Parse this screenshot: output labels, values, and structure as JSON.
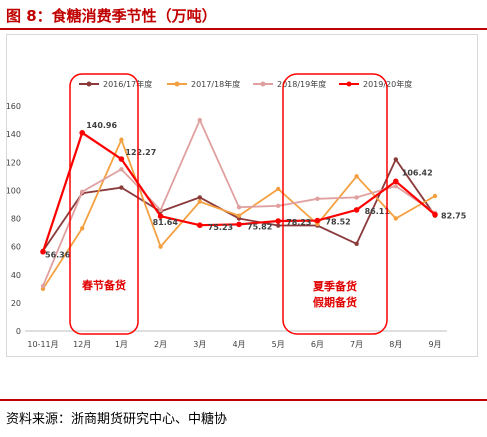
{
  "header": {
    "title": "图 8：食糖消费季节性（万吨）"
  },
  "footer": {
    "source": "资料来源：浙商期货研究中心、中糖协"
  },
  "annotations": {
    "spring": "春节备货",
    "summer_line1": "夏季备货",
    "summer_line2": "假期备货"
  },
  "colors": {
    "accent": "#c00000",
    "highlight": "#ff0000"
  },
  "chart_data": {
    "type": "line",
    "title": "",
    "xlabel": "",
    "ylabel": "",
    "ylim": [
      0,
      160
    ],
    "yticks": [
      0,
      20,
      40,
      60,
      80,
      100,
      120,
      140,
      160
    ],
    "grid": false,
    "legend": "top",
    "categories": [
      "10-11月",
      "12月",
      "1月",
      "2月",
      "3月",
      "4月",
      "5月",
      "6月",
      "7月",
      "8月",
      "9月"
    ],
    "series": [
      {
        "name": "2016/17年度",
        "color": "#8b3a3a",
        "values": [
          57,
          98,
          102,
          85,
          95,
          80,
          75,
          75,
          62,
          122,
          82
        ]
      },
      {
        "name": "2017/18年度",
        "color": "#f4a040",
        "values": [
          30,
          73,
          136,
          60,
          92,
          82,
          101,
          76,
          110,
          80,
          96
        ]
      },
      {
        "name": "2018/19年度",
        "color": "#e0a0a0",
        "values": [
          32,
          99,
          115,
          86,
          150,
          88,
          89,
          94,
          95,
          103,
          84
        ]
      },
      {
        "name": "2019/20年度",
        "color": "#ff0000",
        "values": [
          56.36,
          140.96,
          122.27,
          81.64,
          75.23,
          75.82,
          78.23,
          78.52,
          86.11,
          106.42,
          82.75
        ]
      }
    ],
    "data_labels": [
      {
        "series": 3,
        "index": 0,
        "text": "56.36"
      },
      {
        "series": 3,
        "index": 1,
        "text": "140.96"
      },
      {
        "series": 3,
        "index": 2,
        "text": "122.27"
      },
      {
        "series": 3,
        "index": 3,
        "text": "81.64"
      },
      {
        "series": 3,
        "index": 4,
        "text": "75.23"
      },
      {
        "series": 3,
        "index": 5,
        "text": "75.82"
      },
      {
        "series": 3,
        "index": 6,
        "text": "78.23"
      },
      {
        "series": 3,
        "index": 7,
        "text": "78.52"
      },
      {
        "series": 3,
        "index": 8,
        "text": "86.11"
      },
      {
        "series": 3,
        "index": 9,
        "text": "106.42"
      },
      {
        "series": 3,
        "index": 10,
        "text": "82.75"
      }
    ]
  }
}
